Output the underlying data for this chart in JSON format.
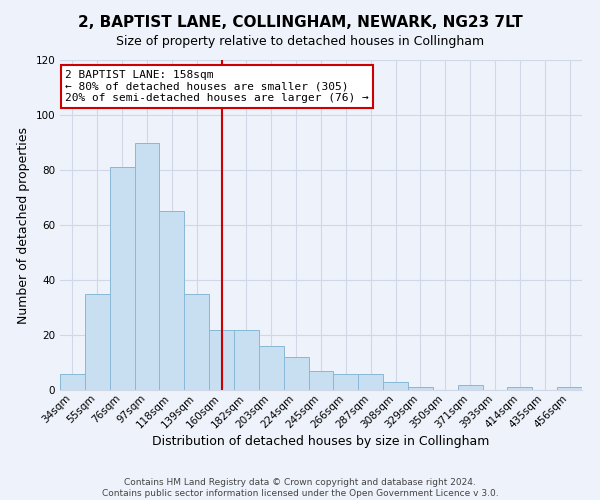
{
  "title": "2, BAPTIST LANE, COLLINGHAM, NEWARK, NG23 7LT",
  "subtitle": "Size of property relative to detached houses in Collingham",
  "xlabel": "Distribution of detached houses by size in Collingham",
  "ylabel": "Number of detached properties",
  "bar_color": "#c8dff2",
  "bar_edge_color": "#88b8d8",
  "background_color": "#eef2fa",
  "bin_labels": [
    "34sqm",
    "55sqm",
    "76sqm",
    "97sqm",
    "118sqm",
    "139sqm",
    "160sqm",
    "182sqm",
    "203sqm",
    "224sqm",
    "245sqm",
    "266sqm",
    "287sqm",
    "308sqm",
    "329sqm",
    "350sqm",
    "371sqm",
    "393sqm",
    "414sqm",
    "435sqm",
    "456sqm"
  ],
  "bar_values": [
    6,
    35,
    81,
    90,
    65,
    35,
    22,
    22,
    16,
    12,
    7,
    6,
    6,
    3,
    1,
    0,
    2,
    0,
    1,
    0,
    1
  ],
  "vline_index": 6,
  "vline_color": "#cc0000",
  "ylim": [
    0,
    120
  ],
  "yticks": [
    0,
    20,
    40,
    60,
    80,
    100,
    120
  ],
  "annotation_title": "2 BAPTIST LANE: 158sqm",
  "annotation_line1": "← 80% of detached houses are smaller (305)",
  "annotation_line2": "20% of semi-detached houses are larger (76) →",
  "annotation_box_color": "#ffffff",
  "annotation_box_edge": "#cc0000",
  "footer_line1": "Contains HM Land Registry data © Crown copyright and database right 2024.",
  "footer_line2": "Contains public sector information licensed under the Open Government Licence v 3.0.",
  "grid_color": "#d0d8e8",
  "title_fontsize": 11,
  "subtitle_fontsize": 9,
  "axis_label_fontsize": 9,
  "tick_fontsize": 7.5,
  "annotation_fontsize": 8,
  "footer_fontsize": 6.5
}
